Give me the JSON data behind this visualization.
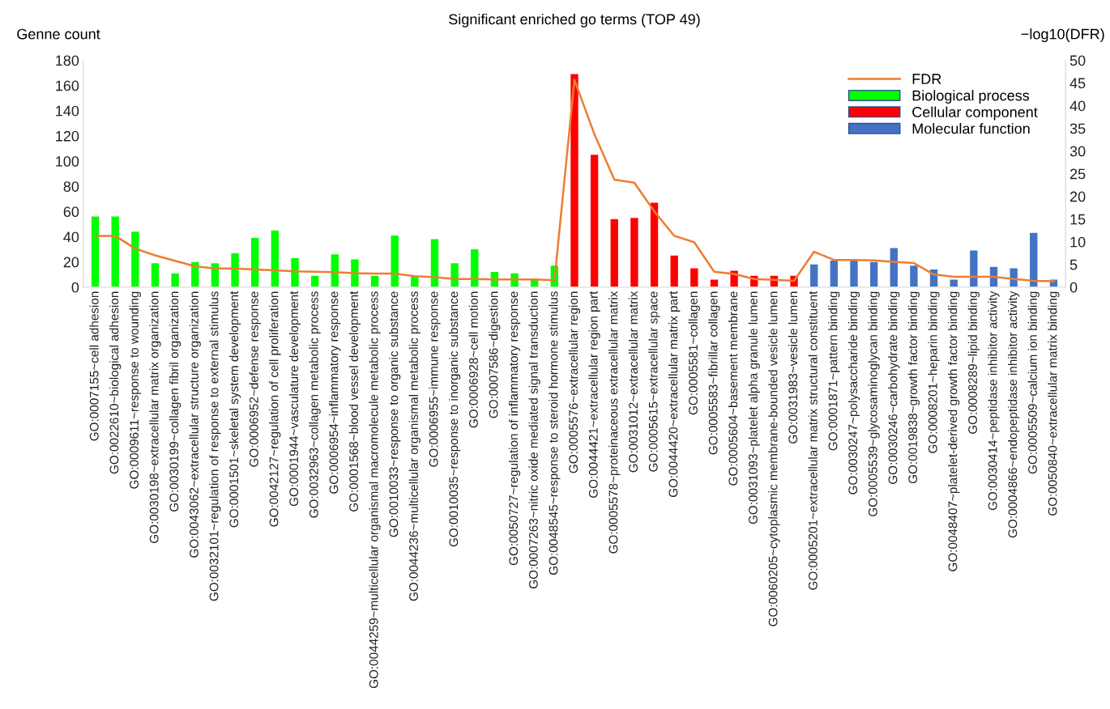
{
  "chart_data": {
    "type": "bar",
    "title": "Significant enriched go terms (TOP 49)",
    "ylabel": "Genne count",
    "y2label": "−log10(DFR)",
    "categories": [
      "GO:0007155~cell adhesion",
      "GO:0022610~biological adhesion",
      "GO:0009611~response to wounding",
      "GO:0030198~extracellular matrix organization",
      "GO:0030199~collagen fibril organization",
      "GO:0043062~extracellular structure organization",
      "GO:0032101~regulation of response to external stimulus",
      "GO:0001501~skeletal system development",
      "GO:0006952~defense response",
      "GO:0042127~regulation of cell proliferation",
      "GO:0001944~vasculature development",
      "GO:0032963~collagen metabolic process",
      "GO:0006954~inflammatory response",
      "GO:0001568~blood vessel development",
      "GO:0044259~multicellular organismal macromolecule metabolic process",
      "GO:0010033~response to organic substance",
      "GO:0044236~multicellular organismal metabolic process",
      "GO:0006955~immune response",
      "GO:0010035~response to inorganic substance",
      "GO:0006928~cell motion",
      "GO:0007586~digestion",
      "GO:0050727~regulation of inflammatory response",
      "GO:0007263~nitric oxide mediated signal transduction",
      "GO:0048545~response to steroid hormone stimulus",
      "GO:0005576~extracellular region",
      "GO:0044421~extracellular region part",
      "GO:0005578~proteinaceous extracellular matrix",
      "GO:0031012~extracellular matrix",
      "GO:0005615~extracellular space",
      "GO:0044420~extracellular matrix part",
      "GO:0005581~collagen",
      "GO:0005583~fibrillar collagen",
      "GO:0005604~basement membrane",
      "GO:0031093~platelet alpha granule lumen",
      "GO:0060205~cytoplasmic membrane-bounded vesicle lumen",
      "GO:0031983~vesicle lumen",
      "GO:0005201~extracellular matrix structural constituent",
      "GO:0001871~pattern binding",
      "GO:0030247~polysaccharide binding",
      "GO:0005539~glycosaminoglycan binding",
      "GO:0030246~carbohydrate binding",
      "GO:0019838~growth factor binding",
      "GO:0008201~heparin binding",
      "GO:0048407~platelet-derived growth factor binding",
      "GO:0008289~lipid binding",
      "GO:0030414~peptidase inhibitor activity",
      "GO:0004866~endopeptidase inhibitor activity",
      "GO:0005509~calcium ion binding",
      "GO:0050840~extracellular matrix binding"
    ],
    "series": [
      {
        "name": "FDR",
        "type": "line",
        "axis": "y2",
        "color": "#ed7d31",
        "values": [
          11.3,
          11.3,
          8.5,
          7.0,
          5.8,
          4.6,
          4.1,
          4.1,
          3.9,
          3.7,
          3.5,
          3.4,
          3.3,
          3.1,
          3.0,
          3.0,
          2.4,
          2.2,
          1.8,
          1.8,
          1.7,
          1.7,
          1.7,
          1.5,
          45.7,
          33.7,
          23.7,
          23.0,
          16.7,
          11.3,
          9.9,
          3.4,
          2.9,
          1.8,
          1.6,
          1.4,
          7.8,
          6.0,
          6.0,
          5.9,
          5.6,
          5.3,
          2.8,
          2.3,
          2.3,
          2.3,
          1.8,
          1.4,
          1.3
        ]
      },
      {
        "name": "Biological process",
        "color": "#00ff00",
        "values": [
          56,
          56,
          44,
          19,
          11,
          20,
          19,
          27,
          39,
          45,
          23,
          9,
          26,
          22,
          9,
          41,
          9,
          38,
          19,
          30,
          12,
          11,
          6,
          17,
          null,
          null,
          null,
          null,
          null,
          null,
          null,
          null,
          null,
          null,
          null,
          null,
          null,
          null,
          null,
          null,
          null,
          null,
          null,
          null,
          null,
          null,
          null,
          null,
          null
        ]
      },
      {
        "name": "Cellular component",
        "color": "#ff0000",
        "values": [
          null,
          null,
          null,
          null,
          null,
          null,
          null,
          null,
          null,
          null,
          null,
          null,
          null,
          null,
          null,
          null,
          null,
          null,
          null,
          null,
          null,
          null,
          null,
          null,
          169,
          105,
          54,
          55,
          67,
          25,
          15,
          6,
          13,
          9,
          9,
          9,
          null,
          null,
          null,
          null,
          null,
          null,
          null,
          null,
          null,
          null,
          null,
          null,
          null
        ]
      },
      {
        "name": "Molecular function",
        "color": "#4472c4",
        "values": [
          null,
          null,
          null,
          null,
          null,
          null,
          null,
          null,
          null,
          null,
          null,
          null,
          null,
          null,
          null,
          null,
          null,
          null,
          null,
          null,
          null,
          null,
          null,
          null,
          null,
          null,
          null,
          null,
          null,
          null,
          null,
          null,
          null,
          null,
          null,
          null,
          18,
          21,
          21,
          20,
          31,
          17,
          14,
          6,
          29,
          16,
          15,
          43,
          6
        ]
      }
    ],
    "ylim": [
      0,
      180
    ],
    "yticks": [
      0,
      20,
      40,
      60,
      80,
      100,
      120,
      140,
      160,
      180
    ],
    "y2lim": [
      0,
      50
    ],
    "y2ticks": [
      0,
      5,
      10,
      15,
      20,
      25,
      30,
      35,
      40,
      45,
      50
    ],
    "legend": "top right"
  }
}
